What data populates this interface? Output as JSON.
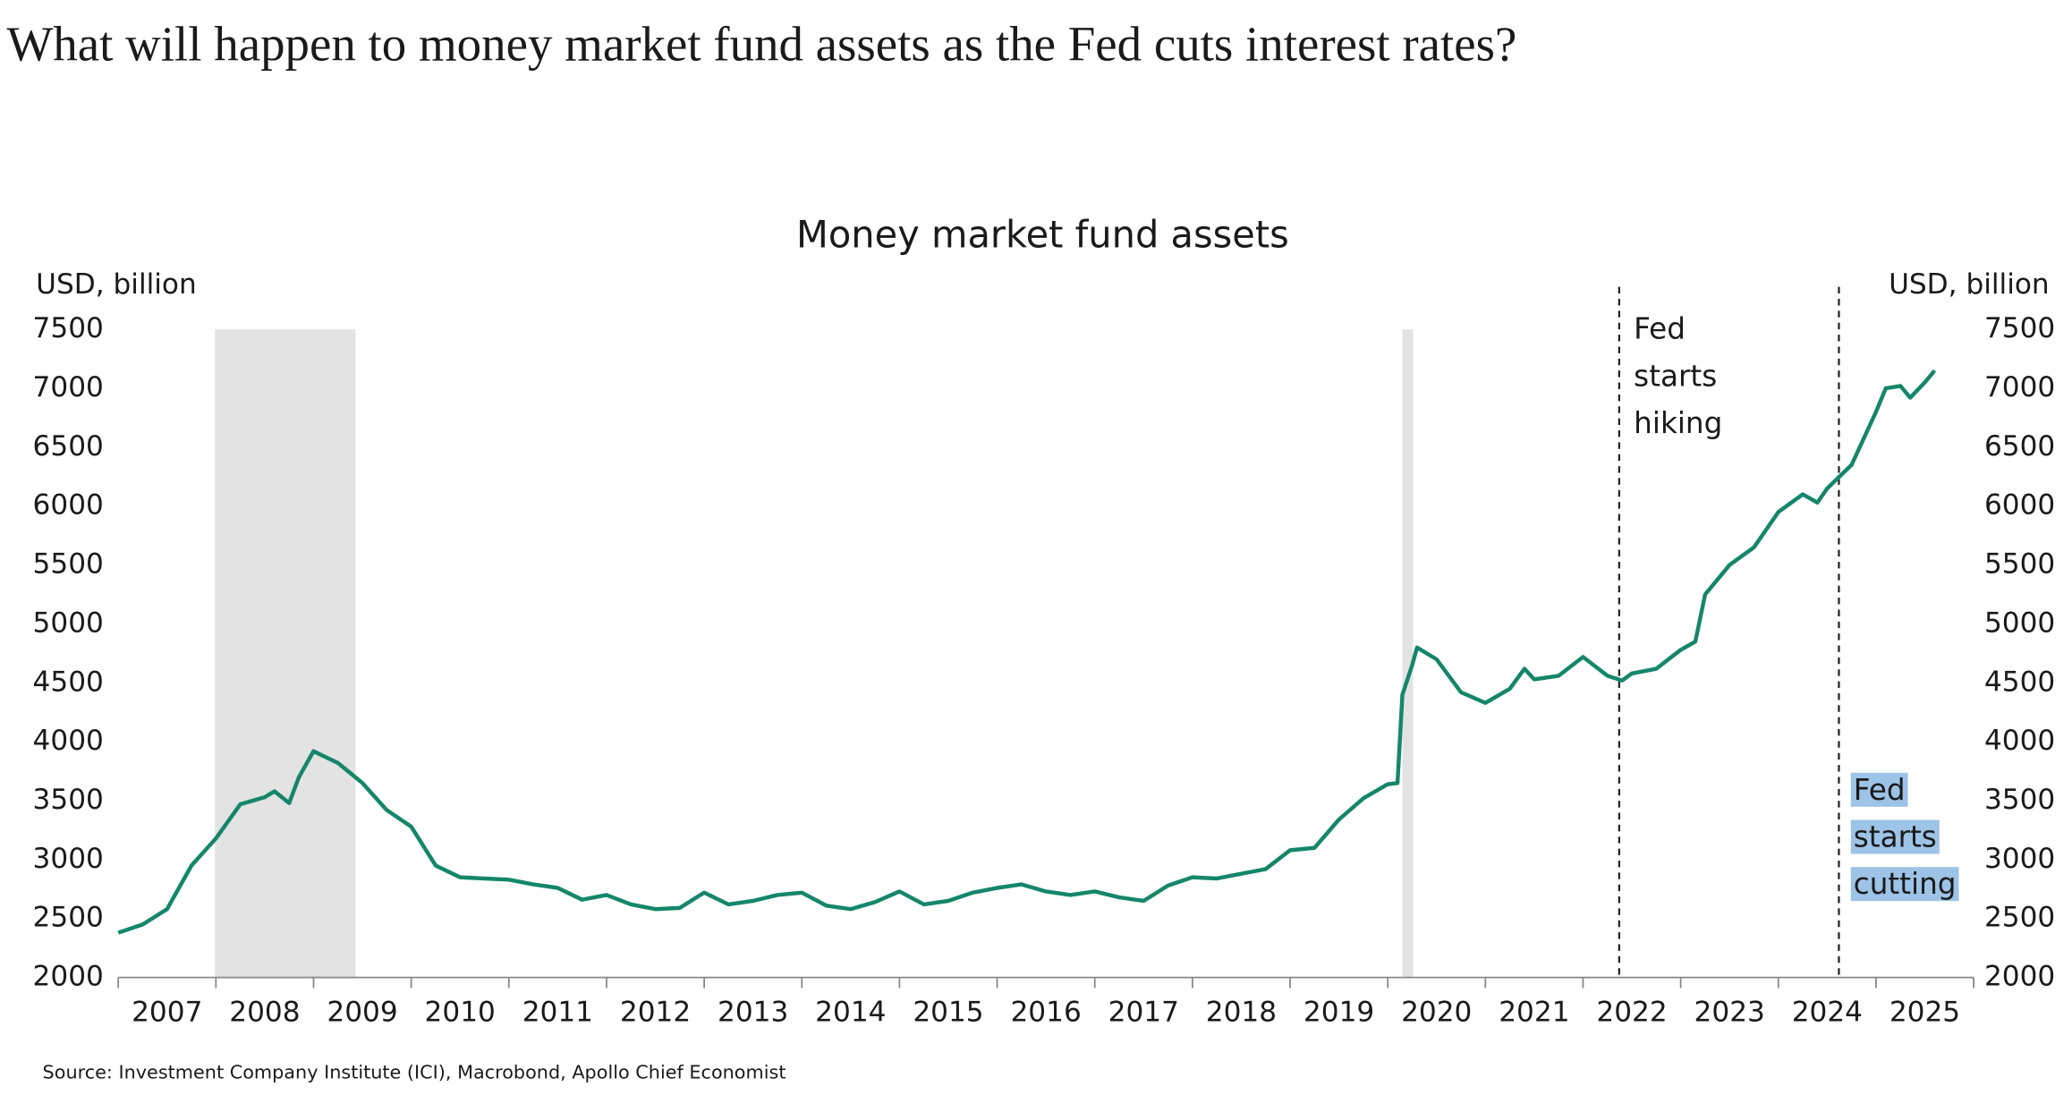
{
  "chart_data": {
    "type": "line",
    "page_title": "What will happen to money market fund assets as the Fed cuts interest rates?",
    "title": "Money market fund assets",
    "y_label": "USD, billion",
    "y2_label": "USD, billion",
    "source": "Source: Investment Company Institute (ICI), Macrobond, Apollo Chief Economist",
    "color": "#15866a",
    "x": [
      2007.0,
      2007.25,
      2007.5,
      2007.75,
      2008.0,
      2008.25,
      2008.5,
      2008.6,
      2008.75,
      2008.85,
      2009.0,
      2009.25,
      2009.5,
      2009.75,
      2010.0,
      2010.25,
      2010.5,
      2010.75,
      2011.0,
      2011.25,
      2011.5,
      2011.75,
      2012.0,
      2012.25,
      2012.5,
      2012.75,
      2013.0,
      2013.25,
      2013.5,
      2013.75,
      2014.0,
      2014.25,
      2014.5,
      2014.75,
      2015.0,
      2015.25,
      2015.5,
      2015.75,
      2016.0,
      2016.25,
      2016.5,
      2016.75,
      2017.0,
      2017.25,
      2017.5,
      2017.75,
      2018.0,
      2018.25,
      2018.5,
      2018.75,
      2019.0,
      2019.25,
      2019.5,
      2019.75,
      2020.0,
      2020.1,
      2020.15,
      2020.25,
      2020.3,
      2020.5,
      2020.75,
      2021.0,
      2021.25,
      2021.4,
      2021.5,
      2021.75,
      2022.0,
      2022.25,
      2022.4,
      2022.5,
      2022.75,
      2023.0,
      2023.15,
      2023.25,
      2023.5,
      2023.75,
      2024.0,
      2024.25,
      2024.4,
      2024.5,
      2024.75,
      2025.0,
      2025.1,
      2025.25,
      2025.35,
      2025.5,
      2025.6
    ],
    "values": [
      2380,
      2450,
      2580,
      2950,
      3180,
      3470,
      3530,
      3580,
      3480,
      3700,
      3920,
      3820,
      3650,
      3420,
      3280,
      2950,
      2850,
      2840,
      2830,
      2790,
      2760,
      2660,
      2700,
      2620,
      2580,
      2590,
      2720,
      2620,
      2650,
      2700,
      2720,
      2610,
      2580,
      2640,
      2730,
      2620,
      2650,
      2720,
      2760,
      2790,
      2730,
      2700,
      2730,
      2680,
      2650,
      2780,
      2850,
      2840,
      2880,
      2920,
      3080,
      3100,
      3340,
      3520,
      3640,
      3650,
      4400,
      4650,
      4800,
      4700,
      4420,
      4330,
      4450,
      4620,
      4530,
      4560,
      4720,
      4560,
      4520,
      4580,
      4620,
      4780,
      4850,
      5250,
      5500,
      5650,
      5950,
      6100,
      6030,
      6150,
      6350,
      6800,
      7000,
      7020,
      6920,
      7050,
      7150
    ],
    "xlim": [
      2007,
      2026
    ],
    "xticks": [
      2007,
      2008,
      2009,
      2010,
      2011,
      2012,
      2013,
      2014,
      2015,
      2016,
      2017,
      2018,
      2019,
      2020,
      2021,
      2022,
      2023,
      2024,
      2025
    ],
    "ylim": [
      2000,
      7500
    ],
    "yticks": [
      2000,
      2500,
      3000,
      3500,
      4000,
      4500,
      5000,
      5500,
      6000,
      6500,
      7000,
      7500
    ],
    "y2lim": [
      2000,
      7500
    ],
    "y2ticks": [
      2000,
      2500,
      3000,
      3500,
      4000,
      4500,
      5000,
      5500,
      6000,
      6500,
      7000,
      7500
    ],
    "shading_color": "#e3e3e3",
    "shaded": [
      [
        2007.99,
        2009.43
      ],
      [
        2020.15,
        2020.26
      ]
    ],
    "annotations": [
      {
        "x": 2022.37,
        "lines": [
          "Fed",
          "starts",
          "hiking"
        ],
        "highlight": false
      },
      {
        "x": 2024.62,
        "lines": [
          "Fed",
          "starts",
          "cutting"
        ],
        "highlight": true,
        "highlight_color": "#9dc3e6"
      }
    ]
  }
}
